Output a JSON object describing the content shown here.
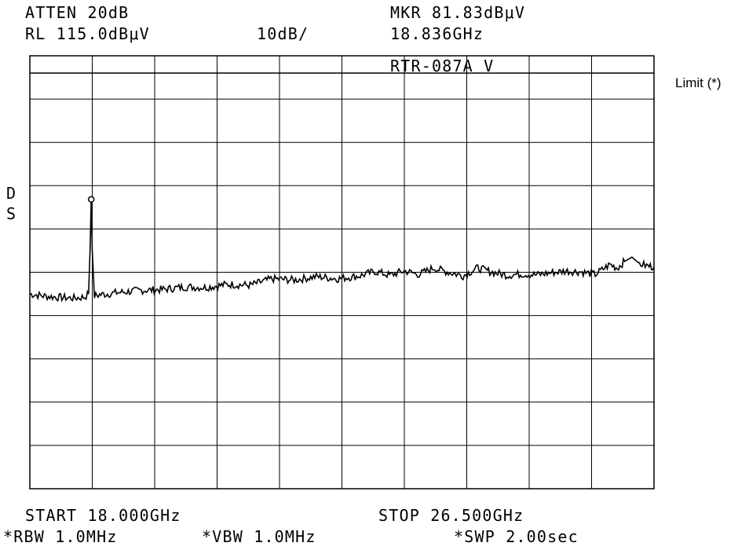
{
  "header": {
    "atten": "ATTEN 20dB",
    "rl": "RL 115.0dBμV",
    "scale": "10dB/",
    "marker_amplitude": "MKR 81.83dBμV",
    "marker_frequency": "18.836GHz",
    "trace_label": "RTR-087A V"
  },
  "side_labels": {
    "d": "D",
    "s": "S"
  },
  "limit_label": "Limit (*)",
  "footer": {
    "start": "START 18.000GHz",
    "stop": "STOP 26.500GHz",
    "rbw": "*RBW 1.0MHz",
    "vbw": "*VBW 1.0MHz",
    "swp": "*SWP 2.00sec"
  },
  "chart_data": {
    "type": "line",
    "title": "",
    "xlabel": "",
    "ylabel": "",
    "x_unit": "GHz",
    "y_unit": "dBμV",
    "xlim": [
      18.0,
      26.5
    ],
    "ylim": [
      15.0,
      115.0
    ],
    "grid": true,
    "limit_line_dBuV": 111.0,
    "marker": {
      "x": 18.836,
      "y": 81.83
    },
    "series": [
      {
        "values_x": [
          18.0,
          18.2,
          18.4,
          18.6,
          18.75,
          18.8,
          18.82,
          18.836,
          18.85,
          18.88,
          18.95,
          19.2,
          19.5,
          19.8,
          20.1,
          20.4,
          20.7,
          21.0,
          21.3,
          21.6,
          21.9,
          22.2,
          22.5,
          22.7,
          22.9,
          23.1,
          23.3,
          23.5,
          23.7,
          23.9,
          24.1,
          24.3,
          24.5,
          24.7,
          24.9,
          25.1,
          25.3,
          25.5,
          25.7,
          25.9,
          26.0,
          26.1,
          26.2,
          26.3,
          26.4,
          26.5
        ],
        "values_y": [
          60.0,
          59.5,
          59.2,
          59.0,
          59.3,
          60.0,
          70.0,
          81.83,
          70.0,
          59.5,
          59.8,
          60.3,
          60.8,
          61.0,
          61.6,
          61.5,
          62.2,
          62.0,
          63.5,
          63.2,
          64.0,
          63.5,
          64.2,
          65.2,
          64.3,
          65.3,
          64.5,
          66.0,
          65.0,
          64.2,
          66.0,
          65.0,
          64.3,
          64.6,
          64.4,
          64.9,
          65.3,
          65.1,
          64.5,
          66.8,
          66.0,
          67.5,
          68.5,
          67.0,
          66.5,
          66.2
        ]
      }
    ]
  }
}
